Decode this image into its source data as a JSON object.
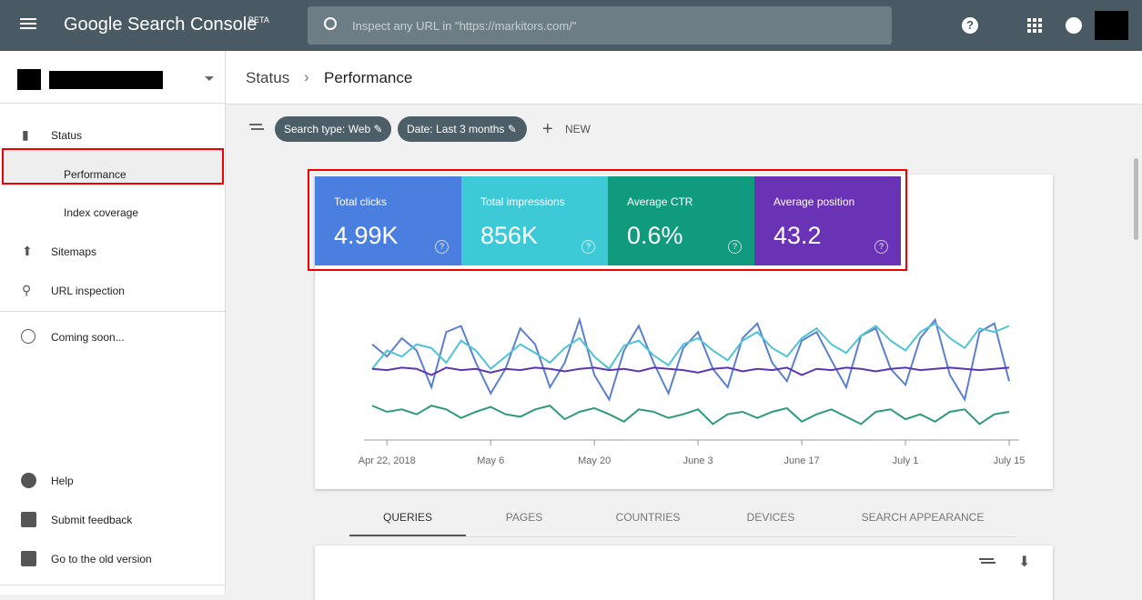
{
  "header": {
    "title": "Google Search Console",
    "badge": "BETA",
    "search_placeholder": "Inspect any URL in \"https://markitors.com/\""
  },
  "breadcrumb": [
    "Status",
    "Performance"
  ],
  "sidebar": {
    "top": [
      "Status",
      "Performance",
      "Index coverage",
      "Sitemaps",
      "URL inspection"
    ],
    "middle": [
      "Coming soon..."
    ],
    "bottom": [
      "Help",
      "Submit feedback",
      "Go to the old version"
    ]
  },
  "filters": {
    "chips": [
      "Search type: Web",
      "Date: Last 3 months"
    ],
    "new": "NEW"
  },
  "metrics": [
    {
      "label": "Total clicks",
      "value": "4.99K",
      "color": "#4a7fe0",
      "line": "#5b7fd0",
      "values": [
        75,
        65,
        80,
        70,
        40,
        85,
        90,
        60,
        35,
        55,
        88,
        75,
        40,
        60,
        95,
        50,
        30,
        70,
        90,
        60,
        35,
        72,
        85,
        55,
        40,
        80,
        92,
        60,
        45,
        78,
        85,
        62,
        40,
        82,
        88,
        55,
        42,
        80,
        95,
        50,
        30,
        85,
        92,
        45
      ]
    },
    {
      "label": "Total impressions",
      "value": "856K",
      "color": "#3ec9d6",
      "line": "#4fc3d5",
      "values": [
        55,
        70,
        65,
        75,
        72,
        60,
        78,
        70,
        55,
        65,
        75,
        68,
        60,
        72,
        80,
        65,
        55,
        74,
        78,
        66,
        58,
        75,
        80,
        70,
        62,
        78,
        85,
        72,
        65,
        80,
        88,
        75,
        68,
        82,
        90,
        78,
        70,
        85,
        92,
        80,
        72,
        88,
        85,
        90
      ]
    },
    {
      "label": "Average CTR",
      "value": "0.6%",
      "color": "#109a7e",
      "line": "#2e9a7c",
      "values": [
        25,
        20,
        22,
        18,
        25,
        22,
        15,
        20,
        24,
        18,
        16,
        22,
        25,
        14,
        20,
        23,
        18,
        12,
        22,
        20,
        15,
        18,
        22,
        10,
        18,
        20,
        15,
        20,
        23,
        12,
        18,
        22,
        16,
        10,
        20,
        22,
        14,
        18,
        12,
        20,
        22,
        10,
        18,
        20
      ]
    },
    {
      "label": "Average position",
      "value": "43.2",
      "color": "#6a33b5",
      "line": "#5e35b1",
      "values": [
        55,
        54,
        56,
        55,
        50,
        56,
        54,
        55,
        52,
        55,
        54,
        56,
        55,
        53,
        55,
        56,
        54,
        55,
        53,
        56,
        55,
        54,
        52,
        55,
        56,
        53,
        55,
        54,
        56,
        50,
        55,
        54,
        56,
        55,
        53,
        55,
        56,
        54,
        55,
        56,
        55,
        54,
        55,
        56
      ]
    }
  ],
  "chart_data": {
    "type": "line",
    "x": [
      0,
      2,
      4,
      6,
      8,
      10,
      12,
      14,
      16,
      18,
      20,
      22,
      24,
      26,
      28,
      30,
      32,
      34,
      36,
      38,
      40,
      42,
      44,
      46,
      48,
      50,
      52,
      54,
      56,
      58,
      60,
      62,
      64,
      66,
      68,
      70,
      72,
      74,
      76,
      78,
      80,
      82,
      84,
      86
    ],
    "xlim": [
      0,
      86
    ],
    "ylim": [
      0,
      100
    ],
    "xticks": [
      {
        "value": 2,
        "label": "Apr 22, 2018"
      },
      {
        "value": 16,
        "label": "May 6"
      },
      {
        "value": 30,
        "label": "May 20"
      },
      {
        "value": 44,
        "label": "June 3"
      },
      {
        "value": 58,
        "label": "June 17"
      },
      {
        "value": 72,
        "label": "July 1"
      },
      {
        "value": 86,
        "label": "July 15"
      }
    ]
  },
  "tabs": [
    "QUERIES",
    "PAGES",
    "COUNTRIES",
    "DEVICES",
    "SEARCH APPEARANCE"
  ]
}
